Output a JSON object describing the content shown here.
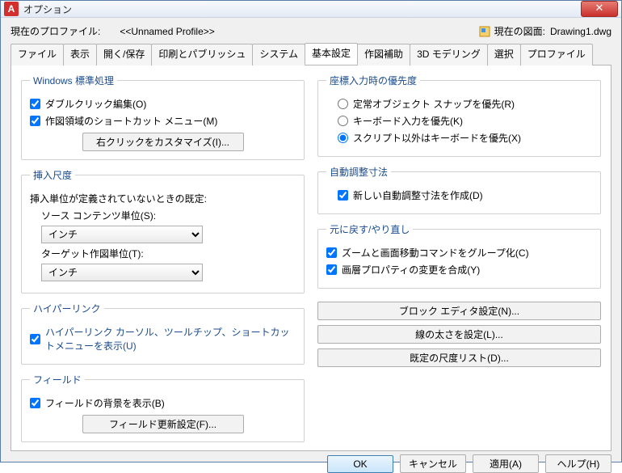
{
  "window": {
    "title": "オプション"
  },
  "profile": {
    "current_label": "現在のプロファイル:",
    "current_value": "<<Unnamed Profile>>",
    "drawing_label": "現在の図面:",
    "drawing_value": "Drawing1.dwg"
  },
  "tabs": {
    "items": [
      "ファイル",
      "表示",
      "開く/保存",
      "印刷とパブリッシュ",
      "システム",
      "基本設定",
      "作図補助",
      "3D モデリング",
      "選択",
      "プロファイル"
    ],
    "active_index": 5
  },
  "left": {
    "windows_std": {
      "legend": "Windows 標準処理",
      "dblclick": "ダブルクリック編集(O)",
      "shortcut_menu": "作図領域のショートカット メニュー(M)",
      "customize_btn": "右クリックをカスタマイズ(I)..."
    },
    "insert_scale": {
      "legend": "挿入尺度",
      "note": "挿入単位が定義されていないときの既定:",
      "source_label": "ソース コンテンツ単位(S):",
      "source_value": "インチ",
      "target_label": "ターゲット作図単位(T):",
      "target_value": "インチ"
    },
    "hyperlink": {
      "legend": "ハイパーリンク",
      "label": "ハイパーリンク カーソル、ツールチップ、ショートカットメニューを表示(U)"
    },
    "field": {
      "legend": "フィールド",
      "show_bg": "フィールドの背景を表示(B)",
      "update_btn": "フィールド更新設定(F)..."
    }
  },
  "right": {
    "priority": {
      "legend": "座標入力時の優先度",
      "opt1": "定常オブジェクト スナップを優先(R)",
      "opt2": "キーボード入力を優先(K)",
      "opt3": "スクリプト以外はキーボードを優先(X)"
    },
    "autodim": {
      "legend": "自動調整寸法",
      "chk": "新しい自動調整寸法を作成(D)"
    },
    "undo": {
      "legend": "元に戻す/やり直し",
      "chk1": "ズームと画面移動コマンドをグループ化(C)",
      "chk2": "画層プロパティの変更を合成(Y)"
    },
    "buttons": {
      "block_editor": "ブロック エディタ設定(N)...",
      "lineweight": "線の太さを設定(L)...",
      "scale_list": "既定の尺度リスト(D)..."
    }
  },
  "footer": {
    "ok": "OK",
    "cancel": "キャンセル",
    "apply": "適用(A)",
    "help": "ヘルプ(H)"
  }
}
